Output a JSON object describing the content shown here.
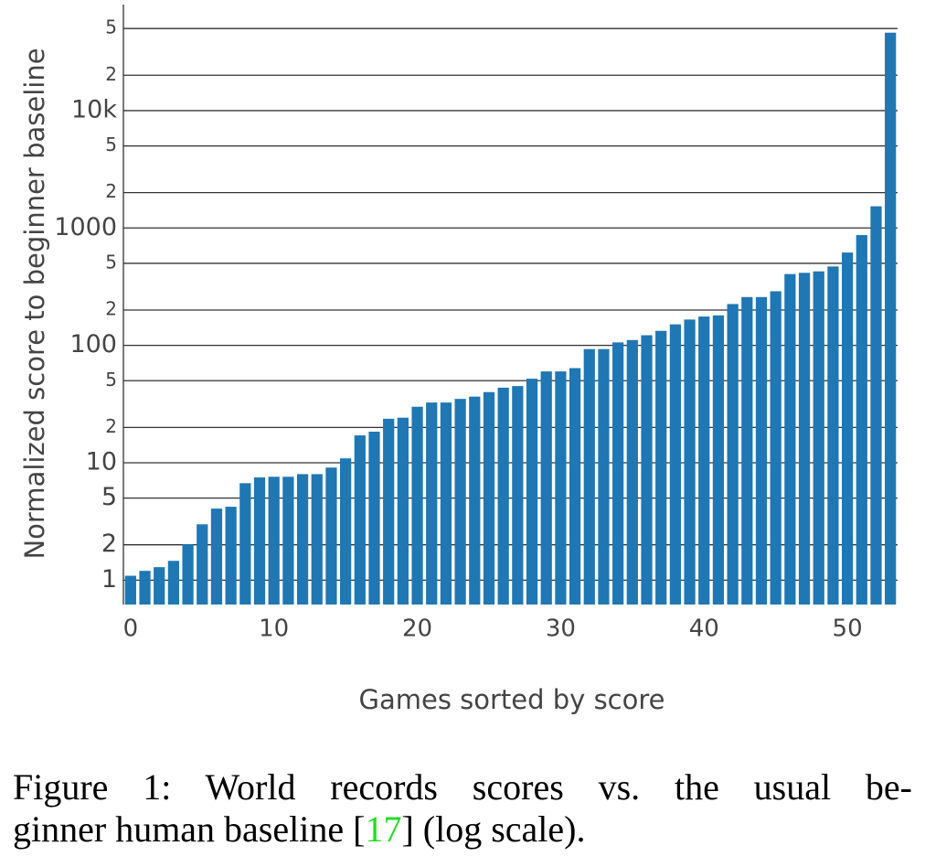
{
  "chart_data": {
    "type": "bar",
    "y_label": "Normalized score to beginner baseline",
    "x_label": "Games sorted by score",
    "x": [
      0,
      1,
      2,
      3,
      4,
      5,
      6,
      7,
      8,
      9,
      10,
      11,
      12,
      13,
      14,
      15,
      16,
      17,
      18,
      19,
      20,
      21,
      22,
      23,
      24,
      25,
      26,
      27,
      28,
      29,
      30,
      31,
      32,
      33,
      34,
      35,
      36,
      37,
      38,
      39,
      40,
      41,
      42,
      43,
      44,
      45,
      46,
      47,
      48,
      49,
      50,
      51,
      52,
      53
    ],
    "values": [
      1.09,
      1.2,
      1.29,
      1.46,
      2.02,
      2.99,
      4.07,
      4.22,
      6.7,
      7.5,
      7.6,
      7.6,
      8.0,
      8.0,
      9.1,
      10.9,
      17.1,
      18.4,
      23.7,
      24.2,
      30,
      32.6,
      32.6,
      35,
      36.6,
      40,
      43.6,
      45,
      52,
      60,
      60,
      64,
      93,
      93,
      106,
      111,
      122,
      133,
      151,
      166,
      176,
      180,
      225,
      258,
      258,
      289,
      405,
      415,
      427,
      470,
      618,
      870,
      1530,
      46100
    ],
    "color": "#1f77b4",
    "log_scale": true,
    "grid": true,
    "xlim": [
      -0.5,
      53.5
    ],
    "xticks": [
      0,
      10,
      20,
      30,
      40,
      50
    ],
    "ylim": [
      0.62,
      80000
    ],
    "yticks": [
      {
        "value": 50000,
        "label": "5"
      },
      {
        "value": 20000,
        "label": "2"
      },
      {
        "value": 10000,
        "label": "10k"
      },
      {
        "value": 5000,
        "label": "5"
      },
      {
        "value": 2000,
        "label": "2"
      },
      1000,
      {
        "value": 500,
        "label": "5"
      },
      {
        "value": 200,
        "label": "2"
      },
      100,
      {
        "value": 50,
        "label": "5"
      },
      {
        "value": 20,
        "label": "2"
      },
      10,
      5,
      2,
      1
    ]
  },
  "caption": {
    "line1": "Figure 1: World records scores vs. the usual be-",
    "line2_before": "ginner human baseline [",
    "ref": "17",
    "line2_after": "] (log scale)."
  }
}
